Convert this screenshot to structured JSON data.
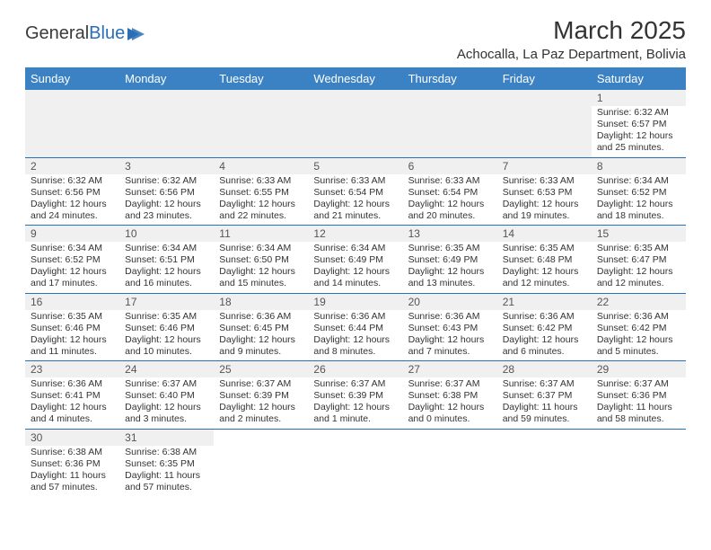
{
  "brand": {
    "part1": "General",
    "part2": "Blue"
  },
  "title": "March 2025",
  "subtitle": "Achocalla, La Paz Department, Bolivia",
  "colors": {
    "header_bg": "#3b82c4",
    "header_text": "#ffffff",
    "row_border": "#2a6fb5",
    "daynum_bg": "#f0f0f0",
    "text": "#333333",
    "logo_blue": "#2a6fb5"
  },
  "day_headers": [
    "Sunday",
    "Monday",
    "Tuesday",
    "Wednesday",
    "Thursday",
    "Friday",
    "Saturday"
  ],
  "weeks": [
    [
      null,
      null,
      null,
      null,
      null,
      null,
      {
        "n": "1",
        "sr": "6:32 AM",
        "ss": "6:57 PM",
        "dl": "12 hours and 25 minutes."
      }
    ],
    [
      {
        "n": "2",
        "sr": "6:32 AM",
        "ss": "6:56 PM",
        "dl": "12 hours and 24 minutes."
      },
      {
        "n": "3",
        "sr": "6:32 AM",
        "ss": "6:56 PM",
        "dl": "12 hours and 23 minutes."
      },
      {
        "n": "4",
        "sr": "6:33 AM",
        "ss": "6:55 PM",
        "dl": "12 hours and 22 minutes."
      },
      {
        "n": "5",
        "sr": "6:33 AM",
        "ss": "6:54 PM",
        "dl": "12 hours and 21 minutes."
      },
      {
        "n": "6",
        "sr": "6:33 AM",
        "ss": "6:54 PM",
        "dl": "12 hours and 20 minutes."
      },
      {
        "n": "7",
        "sr": "6:33 AM",
        "ss": "6:53 PM",
        "dl": "12 hours and 19 minutes."
      },
      {
        "n": "8",
        "sr": "6:34 AM",
        "ss": "6:52 PM",
        "dl": "12 hours and 18 minutes."
      }
    ],
    [
      {
        "n": "9",
        "sr": "6:34 AM",
        "ss": "6:52 PM",
        "dl": "12 hours and 17 minutes."
      },
      {
        "n": "10",
        "sr": "6:34 AM",
        "ss": "6:51 PM",
        "dl": "12 hours and 16 minutes."
      },
      {
        "n": "11",
        "sr": "6:34 AM",
        "ss": "6:50 PM",
        "dl": "12 hours and 15 minutes."
      },
      {
        "n": "12",
        "sr": "6:34 AM",
        "ss": "6:49 PM",
        "dl": "12 hours and 14 minutes."
      },
      {
        "n": "13",
        "sr": "6:35 AM",
        "ss": "6:49 PM",
        "dl": "12 hours and 13 minutes."
      },
      {
        "n": "14",
        "sr": "6:35 AM",
        "ss": "6:48 PM",
        "dl": "12 hours and 12 minutes."
      },
      {
        "n": "15",
        "sr": "6:35 AM",
        "ss": "6:47 PM",
        "dl": "12 hours and 12 minutes."
      }
    ],
    [
      {
        "n": "16",
        "sr": "6:35 AM",
        "ss": "6:46 PM",
        "dl": "12 hours and 11 minutes."
      },
      {
        "n": "17",
        "sr": "6:35 AM",
        "ss": "6:46 PM",
        "dl": "12 hours and 10 minutes."
      },
      {
        "n": "18",
        "sr": "6:36 AM",
        "ss": "6:45 PM",
        "dl": "12 hours and 9 minutes."
      },
      {
        "n": "19",
        "sr": "6:36 AM",
        "ss": "6:44 PM",
        "dl": "12 hours and 8 minutes."
      },
      {
        "n": "20",
        "sr": "6:36 AM",
        "ss": "6:43 PM",
        "dl": "12 hours and 7 minutes."
      },
      {
        "n": "21",
        "sr": "6:36 AM",
        "ss": "6:42 PM",
        "dl": "12 hours and 6 minutes."
      },
      {
        "n": "22",
        "sr": "6:36 AM",
        "ss": "6:42 PM",
        "dl": "12 hours and 5 minutes."
      }
    ],
    [
      {
        "n": "23",
        "sr": "6:36 AM",
        "ss": "6:41 PM",
        "dl": "12 hours and 4 minutes."
      },
      {
        "n": "24",
        "sr": "6:37 AM",
        "ss": "6:40 PM",
        "dl": "12 hours and 3 minutes."
      },
      {
        "n": "25",
        "sr": "6:37 AM",
        "ss": "6:39 PM",
        "dl": "12 hours and 2 minutes."
      },
      {
        "n": "26",
        "sr": "6:37 AM",
        "ss": "6:39 PM",
        "dl": "12 hours and 1 minute."
      },
      {
        "n": "27",
        "sr": "6:37 AM",
        "ss": "6:38 PM",
        "dl": "12 hours and 0 minutes."
      },
      {
        "n": "28",
        "sr": "6:37 AM",
        "ss": "6:37 PM",
        "dl": "11 hours and 59 minutes."
      },
      {
        "n": "29",
        "sr": "6:37 AM",
        "ss": "6:36 PM",
        "dl": "11 hours and 58 minutes."
      }
    ],
    [
      {
        "n": "30",
        "sr": "6:38 AM",
        "ss": "6:36 PM",
        "dl": "11 hours and 57 minutes."
      },
      {
        "n": "31",
        "sr": "6:38 AM",
        "ss": "6:35 PM",
        "dl": "11 hours and 57 minutes."
      },
      null,
      null,
      null,
      null,
      null
    ]
  ],
  "labels": {
    "sunrise": "Sunrise:",
    "sunset": "Sunset:",
    "daylight": "Daylight:"
  }
}
